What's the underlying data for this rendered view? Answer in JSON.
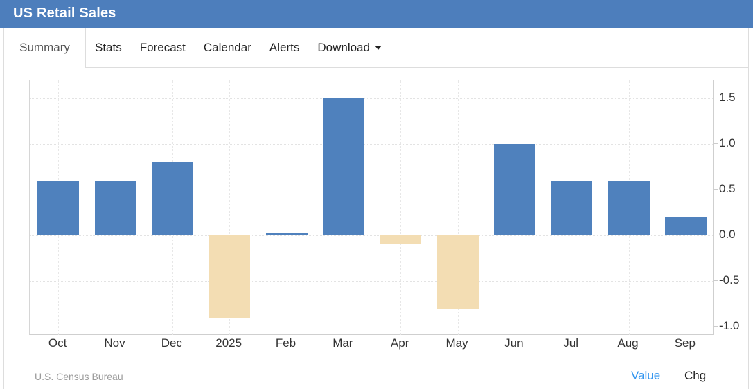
{
  "header": {
    "title": "US Retail Sales"
  },
  "tabs": [
    {
      "label": "Summary",
      "active": true,
      "caret": false
    },
    {
      "label": "Stats",
      "active": false,
      "caret": false
    },
    {
      "label": "Forecast",
      "active": false,
      "caret": false
    },
    {
      "label": "Calendar",
      "active": false,
      "caret": false
    },
    {
      "label": "Alerts",
      "active": false,
      "caret": false
    },
    {
      "label": "Download",
      "active": false,
      "caret": true
    }
  ],
  "chart_data": {
    "type": "bar",
    "categories": [
      "Oct",
      "Nov",
      "Dec",
      "2025",
      "Feb",
      "Mar",
      "Apr",
      "May",
      "Jun",
      "Jul",
      "Aug",
      "Sep"
    ],
    "values": [
      0.6,
      0.6,
      0.8,
      -0.9,
      0.0,
      1.5,
      -0.1,
      -0.8,
      1.0,
      0.6,
      0.6,
      0.2
    ],
    "title": "",
    "xlabel": "",
    "ylabel": "",
    "yticks": [
      1.5,
      1.0,
      0.5,
      0.0,
      -0.5,
      -1.0
    ],
    "ytick_format": "one_decimal",
    "ylim": [
      -1.09,
      1.7
    ],
    "grid": "dotted",
    "legend": "none",
    "colors": {
      "positive": "#4f81bd",
      "negative": "#f3ddb3"
    }
  },
  "footer": {
    "source": "U.S. Census Bureau",
    "links": [
      {
        "label": "Value",
        "active": true
      },
      {
        "label": "Chg",
        "active": false
      }
    ]
  },
  "colors": {
    "header_bg": "#4d7ebc",
    "active_link": "#3295ef",
    "axis_text": "#333333"
  }
}
